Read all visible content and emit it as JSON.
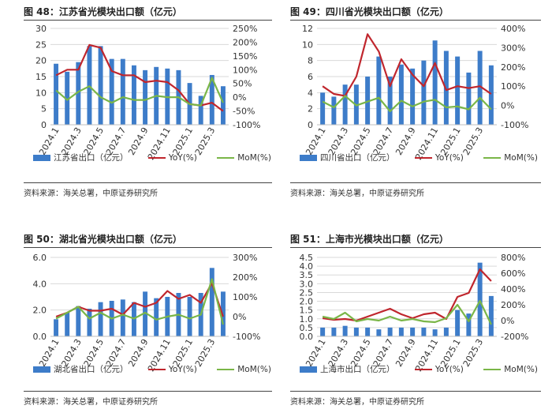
{
  "colors": {
    "bar": "#3d7cc9",
    "yoy": "#c0262d",
    "mom": "#7ab648",
    "grid": "#d9d9d9"
  },
  "legend_labels": {
    "yoy": "YoY(%)",
    "mom": "MoM(%)"
  },
  "source_text": "资料来源：海关总署，中原证券研究所",
  "x_tick_labels": [
    "2024.1",
    "2024.3",
    "2024.5",
    "2024.7",
    "2024.9",
    "2024.11",
    "2025.1",
    "2025.3"
  ],
  "charts": [
    {
      "title": "图 48：江苏省光模块出口额（亿元）",
      "bar_legend": "江苏省出口（亿元）",
      "chart_data": {
        "type": "bar",
        "categories": [
          "2024.1",
          "2024.2",
          "2024.3",
          "2024.4",
          "2024.5",
          "2024.6",
          "2024.7",
          "2024.8",
          "2024.9",
          "2024.10",
          "2024.11",
          "2024.12",
          "2025.1",
          "2025.2",
          "2025.3",
          "2025.4"
        ],
        "series": [
          {
            "name": "江苏省出口（亿元）",
            "axis": "left",
            "values": [
              19,
              16.5,
              19.5,
              24.5,
              24.5,
              20.5,
              20.5,
              18.5,
              17,
              18,
              17.5,
              17,
              13,
              9,
              15.5,
              12
            ]
          },
          {
            "name": "YoY(%)",
            "axis": "right",
            "values": [
              80,
              100,
              100,
              190,
              180,
              95,
              80,
              80,
              55,
              60,
              55,
              25,
              -25,
              -30,
              -20,
              -50
            ]
          },
          {
            "name": "MoM(%)",
            "axis": "right",
            "values": [
              25,
              -10,
              20,
              40,
              0,
              -20,
              0,
              -10,
              -10,
              5,
              0,
              0,
              -25,
              -30,
              70,
              -20
            ]
          }
        ],
        "ylim_left": [
          0,
          30
        ],
        "yticks_left": [
          0,
          5,
          10,
          15,
          20,
          25,
          30
        ],
        "ylim_right": [
          -100,
          250
        ],
        "yticks_right": [
          -100,
          -50,
          0,
          50,
          100,
          150,
          200,
          250
        ],
        "yticks_right_labels": [
          "-100%",
          "-50%",
          "0%",
          "50%",
          "100%",
          "150%",
          "200%",
          "250%"
        ]
      }
    },
    {
      "title": "图 49：四川省光模块出口额（亿元）",
      "bar_legend": "四川省出口（亿元）",
      "chart_data": {
        "type": "bar",
        "categories": [
          "2024.1",
          "2024.2",
          "2024.3",
          "2024.4",
          "2024.5",
          "2024.6",
          "2024.7",
          "2024.8",
          "2024.9",
          "2024.10",
          "2024.11",
          "2024.12",
          "2025.1",
          "2025.2",
          "2025.3",
          "2025.4"
        ],
        "series": [
          {
            "name": "四川省出口（亿元）",
            "axis": "left",
            "values": [
              4,
              3.5,
              5,
              5,
              6,
              8.5,
              6,
              7.5,
              7,
              8,
              10.5,
              9.2,
              8.5,
              6.5,
              9.2,
              7.4
            ]
          },
          {
            "name": "YoY(%)",
            "axis": "right",
            "values": [
              100,
              60,
              50,
              150,
              370,
              280,
              100,
              240,
              160,
              100,
              220,
              80,
              100,
              90,
              100,
              60
            ]
          },
          {
            "name": "MoM(%)",
            "axis": "right",
            "values": [
              20,
              -10,
              50,
              0,
              20,
              40,
              -30,
              25,
              -5,
              20,
              30,
              -10,
              -5,
              -20,
              40,
              -20
            ]
          }
        ],
        "ylim_left": [
          0,
          12
        ],
        "yticks_left": [
          0,
          2,
          4,
          6,
          8,
          10,
          12
        ],
        "ylim_right": [
          -100,
          400
        ],
        "yticks_right": [
          -100,
          0,
          100,
          200,
          300,
          400
        ],
        "yticks_right_labels": [
          "-100%",
          "0%",
          "100%",
          "200%",
          "300%",
          "400%"
        ]
      }
    },
    {
      "title": "图 50：湖北省光模块出口额（亿元）",
      "bar_legend": "湖北省出口（亿元）",
      "chart_data": {
        "type": "bar",
        "categories": [
          "2024.1",
          "2024.2",
          "2024.3",
          "2024.4",
          "2024.5",
          "2024.6",
          "2024.7",
          "2024.8",
          "2024.9",
          "2024.10",
          "2024.11",
          "2024.12",
          "2025.1",
          "2025.2",
          "2025.3",
          "2025.4"
        ],
        "series": [
          {
            "name": "湖北省出口（亿元）",
            "axis": "left",
            "values": [
              1.3,
              1.8,
              2.3,
              2.1,
              2.6,
              2.7,
              2.8,
              2.6,
              3.4,
              2.9,
              3,
              3.3,
              3,
              3.3,
              5.2,
              3.4
            ]
          },
          {
            "name": "YoY(%)",
            "axis": "right",
            "values": [
              0,
              20,
              50,
              30,
              30,
              40,
              10,
              70,
              50,
              70,
              130,
              90,
              110,
              70,
              170,
              0
            ]
          },
          {
            "name": "MoM(%)",
            "axis": "right",
            "values": [
              -10,
              20,
              50,
              -10,
              20,
              -10,
              10,
              -10,
              20,
              -15,
              0,
              10,
              -10,
              10,
              190,
              -40
            ]
          }
        ],
        "ylim_left": [
          0,
          6
        ],
        "yticks_left": [
          0,
          2,
          4,
          6
        ],
        "yticks_left_labels": [
          "0.0",
          "2.0",
          "4.0",
          "6.0"
        ],
        "ylim_right": [
          -100,
          300
        ],
        "yticks_right": [
          -100,
          0,
          100,
          200,
          300
        ],
        "yticks_right_labels": [
          "-100%",
          "0%",
          "100%",
          "200%",
          "300%"
        ]
      }
    },
    {
      "title": "图 51：上海市光模块出口额（亿元）",
      "bar_legend": "上海市出口（亿元）",
      "chart_data": {
        "type": "bar",
        "categories": [
          "2024.1",
          "2024.2",
          "2024.3",
          "2024.4",
          "2024.5",
          "2024.6",
          "2024.7",
          "2024.8",
          "2024.9",
          "2024.10",
          "2024.11",
          "2024.12",
          "2025.1",
          "2025.2",
          "2025.3",
          "2025.4"
        ],
        "series": [
          {
            "name": "上海市出口（亿元）",
            "axis": "left",
            "values": [
              0.5,
              0.5,
              0.6,
              0.5,
              0.5,
              0.4,
              0.5,
              0.5,
              0.5,
              0.5,
              0.4,
              0.5,
              1.5,
              1.3,
              4.2,
              2.3
            ]
          },
          {
            "name": "YoY(%)",
            "axis": "right",
            "values": [
              30,
              10,
              20,
              0,
              50,
              100,
              150,
              80,
              30,
              80,
              100,
              20,
              300,
              350,
              650,
              500
            ]
          },
          {
            "name": "MoM(%)",
            "axis": "right",
            "values": [
              50,
              20,
              100,
              -10,
              20,
              0,
              50,
              0,
              20,
              -10,
              -20,
              30,
              200,
              -10,
              250,
              -50
            ]
          }
        ],
        "ylim_left": [
          0,
          4.5
        ],
        "yticks_left": [
          0,
          0.5,
          1,
          1.5,
          2,
          2.5,
          3,
          3.5,
          4,
          4.5
        ],
        "yticks_left_labels": [
          "0.0",
          "0.5",
          "1.0",
          "1.5",
          "2.0",
          "2.5",
          "3.0",
          "3.5",
          "4.0",
          "4.5"
        ],
        "ylim_right": [
          -200,
          800
        ],
        "yticks_right": [
          -200,
          0,
          200,
          400,
          600,
          800
        ],
        "yticks_right_labels": [
          "-200%",
          "0%",
          "200%",
          "400%",
          "600%",
          "800%"
        ]
      }
    }
  ]
}
